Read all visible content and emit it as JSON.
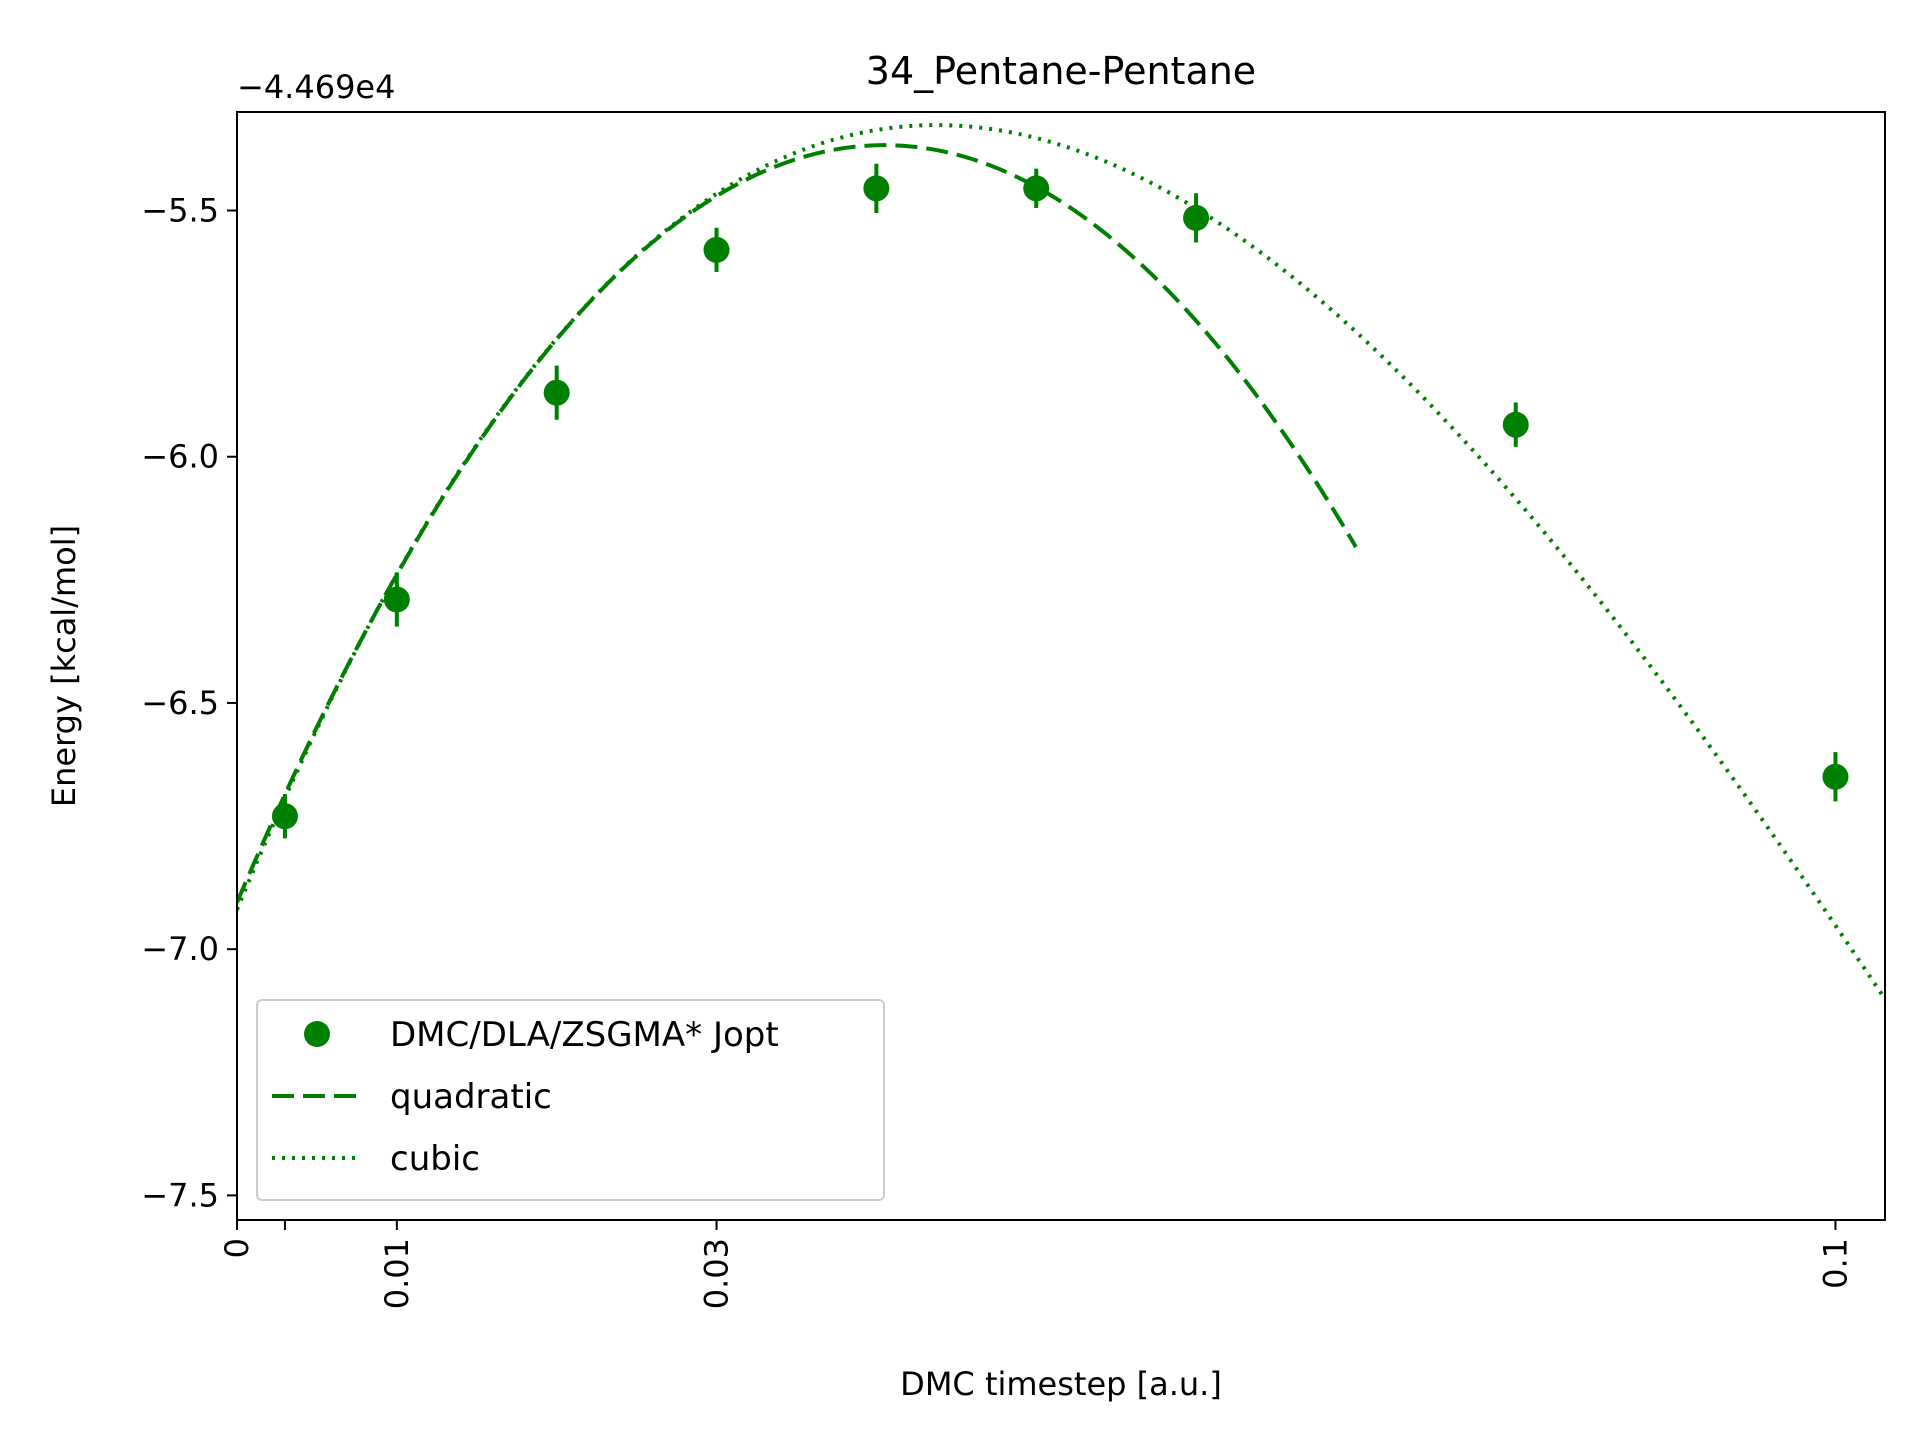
{
  "chart_data": {
    "type": "scatter",
    "title": "34_Pentane-Pentane",
    "xlabel": "DMC timestep [a.u.]",
    "ylabel": "Energy [kcal/mol]",
    "y_offset_label": "−4.469e4",
    "xlim": [
      0,
      0.1031
    ],
    "ylim": [
      -7.55,
      -5.3
    ],
    "x_ticks": [
      0,
      0.003,
      0.01,
      0.03,
      0.1
    ],
    "x_tick_labels": [
      "0",
      "",
      "0.01",
      "0.03",
      "0.1"
    ],
    "y_ticks": [
      -7.5,
      -7.0,
      -6.5,
      -6.0,
      -5.5
    ],
    "y_tick_labels": [
      "−7.5",
      "−7.0",
      "−6.5",
      "−6.0",
      "−5.5"
    ],
    "color": "#008000",
    "series": [
      {
        "name": "DMC/DLA/ZSGMA* Jopt",
        "kind": "errorbar",
        "x": [
          0.003,
          0.01,
          0.02,
          0.03,
          0.04,
          0.05,
          0.06,
          0.08,
          0.1
        ],
        "y": [
          -6.73,
          -6.29,
          -5.87,
          -5.58,
          -5.455,
          -5.455,
          -5.515,
          -5.935,
          -6.65
        ],
        "yerr": [
          0.045,
          0.055,
          0.055,
          0.045,
          0.05,
          0.04,
          0.05,
          0.045,
          0.05
        ]
      },
      {
        "name": "quadratic",
        "kind": "line",
        "style": "dashed",
        "coefficients": [
          -6.905,
          75.94,
          -937.6
        ],
        "x_range": [
          0,
          0.07
        ]
      },
      {
        "name": "cubic",
        "kind": "line",
        "style": "dotted",
        "coefficients": [
          -6.92,
          78.93,
          -1111,
          3185
        ],
        "x_range": [
          0,
          0.1031
        ]
      }
    ],
    "legend": {
      "position": "lower-left",
      "entries": [
        "DMC/DLA/ZSGMA* Jopt",
        "quadratic",
        "cubic"
      ]
    },
    "grid": false
  }
}
